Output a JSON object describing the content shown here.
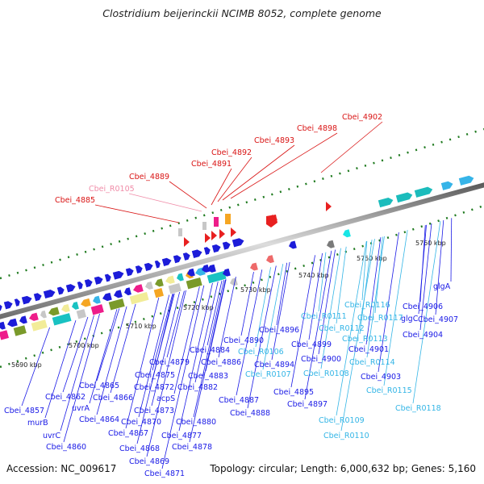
{
  "title": "Clostridium beijerinckii NCIMB 8052, complete genome",
  "footer": {
    "accession": "Accession: NC_009617",
    "summary": "Topology: circular; Length: 6,000,632 bp; Genes: 5,160"
  },
  "colors": {
    "backbone": "#8c8c8c",
    "cds_label": "#1a1ae6",
    "rna_label": "#33b5e6",
    "highlight_label": "#d91414",
    "pseudo_label": "#f08ca8",
    "tick": "#1f7a1f"
  },
  "scale_labels": [
    "5690 kbp",
    "5700 kbp",
    "5710 kbp",
    "5720 kbp",
    "5730 kbp",
    "5740 kbp",
    "5750 kbp",
    "5760 kbp"
  ],
  "red_labels": [
    "Cbei_4885",
    "Cbei_R0105",
    "Cbei_4889",
    "Cbei_4891",
    "Cbei_4892",
    "Cbei_4893",
    "Cbei_4898",
    "Cbei_4902"
  ],
  "gene_labels": [
    "Cbei_4857",
    "murB",
    "uvrC",
    "Cbei_4860",
    "Cbei_4862",
    "uvrA",
    "Cbei_4864",
    "Cbei_4865",
    "Cbei_4866",
    "Cbei_4867",
    "Cbei_4868",
    "Cbei_4869",
    "Cbei_4870",
    "Cbei_4871",
    "Cbei_4872",
    "Cbei_4873",
    "acpS",
    "Cbei_4875",
    "Cbei_4877",
    "Cbei_4878",
    "Cbei_4879",
    "Cbei_4880",
    "Cbei_4882",
    "Cbei_4883",
    "Cbei_4884",
    "Cbei_4886",
    "Cbei_4887",
    "Cbei_4888",
    "Cbei_4890",
    "Cbei_R0106",
    "Cbei_4894",
    "Cbei_R0107",
    "Cbei_4895",
    "Cbei_4896",
    "Cbei_4897",
    "Cbei_4899",
    "Cbei_4900",
    "Cbei_R0108",
    "Cbei_R0109",
    "Cbei_R0110",
    "Cbei_R0111",
    "Cbei_R0112",
    "Cbei_R0113",
    "Cbei_4901",
    "Cbei_R0114",
    "Cbei_4903",
    "Cbei_R0115",
    "Cbei_R0116",
    "Cbei_R0117",
    "Cbei_4904",
    "glgC",
    "Cbei_4906",
    "Cbei_4907",
    "glgA",
    "Cbei_R0118"
  ]
}
